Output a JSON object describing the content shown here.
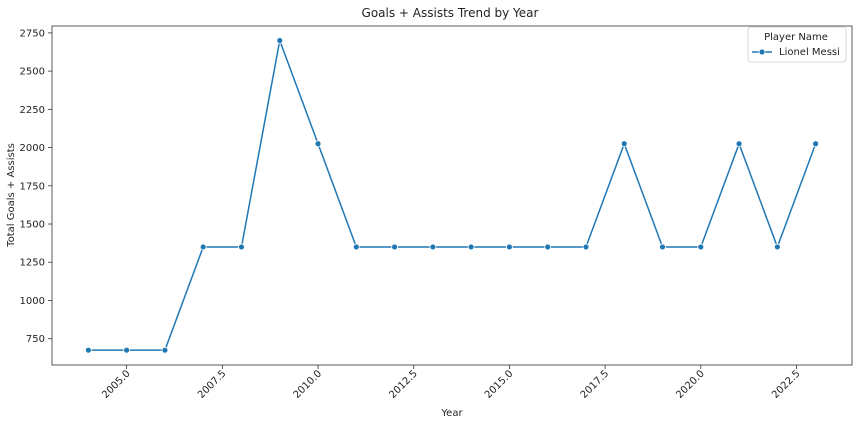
{
  "chart_data": {
    "type": "line",
    "title": "Goals + Assists Trend by Year",
    "xlabel": "Year",
    "ylabel": "Total Goals + Assists",
    "xlim": [
      2003.05,
      2023.95
    ],
    "ylim": [
      578,
      2795
    ],
    "x_ticks": [
      2005.0,
      2007.5,
      2010.0,
      2012.5,
      2015.0,
      2017.5,
      2020.0,
      2022.5
    ],
    "x_tick_labels": [
      "2005.0",
      "2007.5",
      "2010.0",
      "2012.5",
      "2015.0",
      "2017.5",
      "2020.0",
      "2022.5"
    ],
    "y_ticks": [
      750,
      1000,
      1250,
      1500,
      1750,
      2000,
      2250,
      2500,
      2750
    ],
    "y_tick_labels": [
      "750",
      "1000",
      "1250",
      "1500",
      "1750",
      "2000",
      "2250",
      "2500",
      "2750"
    ],
    "grid": false,
    "legend": {
      "title": "Player Name",
      "placement": "top-right"
    },
    "series": [
      {
        "name": "Lionel Messi",
        "color": "#1f77b4",
        "marker": "circle",
        "x": [
          2004,
          2005,
          2006,
          2007,
          2008,
          2009,
          2010,
          2011,
          2012,
          2013,
          2014,
          2015,
          2016,
          2017,
          2018,
          2019,
          2020,
          2021,
          2022,
          2023
        ],
        "y": [
          675,
          675,
          675,
          1350,
          1350,
          2700,
          2025,
          1350,
          1350,
          1350,
          1350,
          1350,
          1350,
          1350,
          2025,
          1350,
          1350,
          2025,
          1350,
          2025
        ]
      }
    ]
  }
}
